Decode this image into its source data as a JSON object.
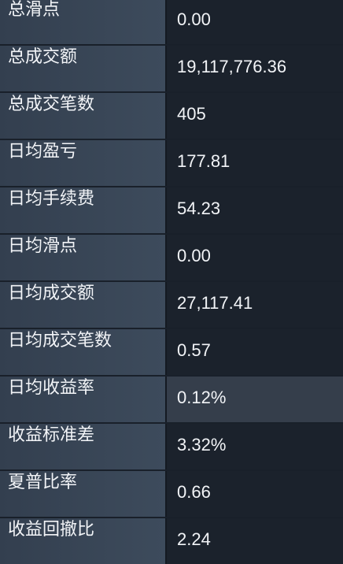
{
  "stats": {
    "rows": [
      {
        "label": "总滑点",
        "value": "0.00"
      },
      {
        "label": "总成交额",
        "value": "19,117,776.36"
      },
      {
        "label": "总成交笔数",
        "value": "405"
      },
      {
        "label": "日均盈亏",
        "value": "177.81"
      },
      {
        "label": "日均手续费",
        "value": "54.23"
      },
      {
        "label": "日均滑点",
        "value": "0.00"
      },
      {
        "label": "日均成交额",
        "value": "27,117.41"
      },
      {
        "label": "日均成交笔数",
        "value": "0.57"
      },
      {
        "label": "日均收益率",
        "value": "0.12%"
      },
      {
        "label": "收益标准差",
        "value": "3.32%"
      },
      {
        "label": "夏普比率",
        "value": "0.66"
      },
      {
        "label": "收益回撤比",
        "value": "2.24"
      }
    ]
  }
}
